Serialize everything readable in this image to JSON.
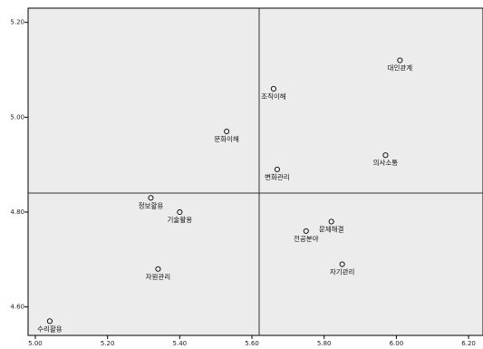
{
  "chart_data": {
    "type": "scatter",
    "title": "",
    "xlabel": "",
    "ylabel": "",
    "xlim": [
      4.98,
      6.24
    ],
    "ylim": [
      4.54,
      5.23
    ],
    "x_ticks": [
      5.0,
      5.2,
      5.4,
      5.6,
      5.8,
      6.0,
      6.2
    ],
    "x_tick_labels": [
      "5.00",
      "5.20",
      "5.40",
      "5.60",
      "5.80",
      "6.00",
      "6.20"
    ],
    "y_ticks": [
      4.6,
      4.8,
      5.0,
      5.2
    ],
    "y_tick_labels": [
      "4.60",
      "4.80",
      "5.00",
      "5.20"
    ],
    "reference_lines": {
      "x": 5.62,
      "y": 4.84
    },
    "grid": false,
    "colors": {
      "plot_background": "#ececec",
      "marker_stroke": "#000000",
      "reference_line": "#333333"
    },
    "points": [
      {
        "label": "대인관계",
        "x": 6.01,
        "y": 5.12
      },
      {
        "label": "조직이해",
        "x": 5.66,
        "y": 5.06
      },
      {
        "label": "문화이해",
        "x": 5.53,
        "y": 4.97
      },
      {
        "label": "의사소통",
        "x": 5.97,
        "y": 4.92
      },
      {
        "label": "변화관리",
        "x": 5.67,
        "y": 4.89
      },
      {
        "label": "정보활용",
        "x": 5.32,
        "y": 4.83
      },
      {
        "label": "기술활용",
        "x": 5.4,
        "y": 4.8
      },
      {
        "label": "문제해결",
        "x": 5.82,
        "y": 4.78
      },
      {
        "label": "전공분야",
        "x": 5.75,
        "y": 4.76
      },
      {
        "label": "자기관리",
        "x": 5.85,
        "y": 4.69
      },
      {
        "label": "자원관리",
        "x": 5.34,
        "y": 4.68
      },
      {
        "label": "수리활용",
        "x": 5.04,
        "y": 4.57
      }
    ]
  }
}
